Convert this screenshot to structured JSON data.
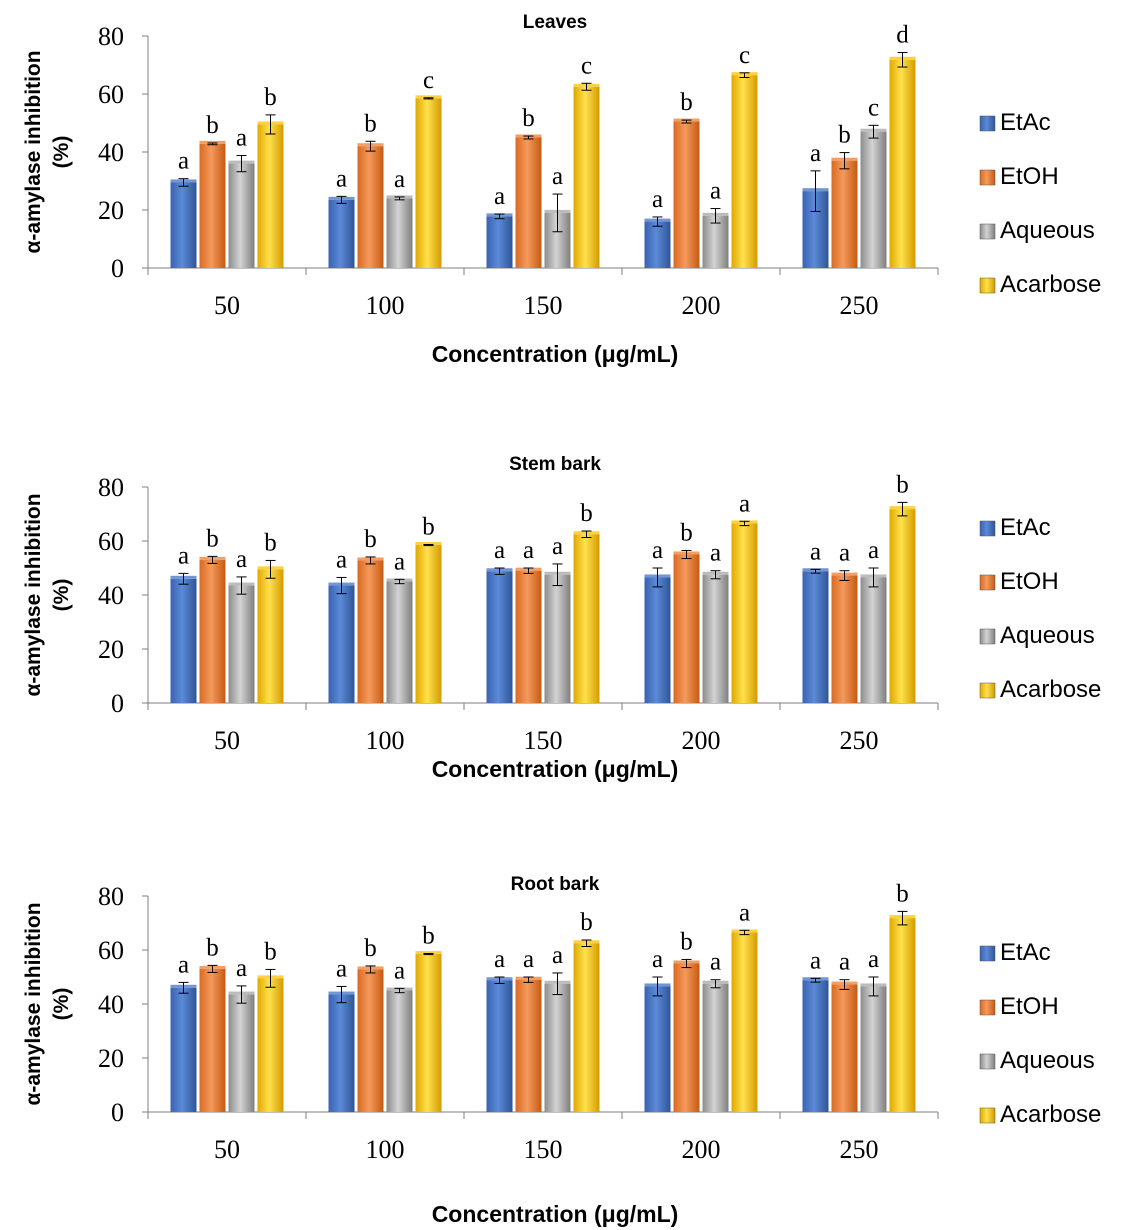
{
  "chart_data": [
    {
      "type": "bar",
      "title": "Leaves",
      "xlabel": "Concentration (μg/mL)",
      "ylabel": "α-amylase inhibition (%)",
      "ylim": [
        0,
        80
      ],
      "yticks": [
        0,
        20,
        40,
        60,
        80
      ],
      "categories": [
        "50",
        "100",
        "150",
        "200",
        "250"
      ],
      "legend_position": "right",
      "series": [
        {
          "name": "EtAc",
          "color": "#4472c4",
          "values": [
            29.5,
            23.5,
            17.8,
            16.0,
            26.5
          ],
          "errors": [
            1.3,
            1.2,
            0.8,
            1.6,
            7.0
          ],
          "letters": [
            "a",
            "a",
            "a",
            "a",
            "a"
          ]
        },
        {
          "name": "EtOH",
          "color": "#ed7d31",
          "values": [
            42.8,
            42.0,
            45.0,
            50.5,
            37.0
          ],
          "errors": [
            0.3,
            1.7,
            0.5,
            0.5,
            2.8
          ],
          "letters": [
            "b",
            "b",
            "b",
            "b",
            "b"
          ]
        },
        {
          "name": "Aqueous",
          "color": "#a5a5a5",
          "values": [
            36.0,
            24.0,
            19.0,
            18.0,
            47.0
          ],
          "errors": [
            2.8,
            0.5,
            6.5,
            2.5,
            2.2
          ],
          "letters": [
            "a",
            "a",
            "a",
            "a",
            "c"
          ]
        },
        {
          "name": "Acarbose",
          "color": "#ffc000",
          "values": [
            49.5,
            58.5,
            62.5,
            66.5,
            71.8
          ],
          "errors": [
            3.3,
            0.2,
            1.2,
            0.8,
            2.5
          ],
          "letters": [
            "b",
            "c",
            "c",
            "c",
            "d"
          ]
        }
      ]
    },
    {
      "type": "bar",
      "title": "Stem bark",
      "xlabel": "Concentration (μg/mL)",
      "ylabel": "α-amylase inhibition (%)",
      "ylim": [
        0,
        80
      ],
      "yticks": [
        0,
        20,
        40,
        60,
        80
      ],
      "categories": [
        "50",
        "100",
        "150",
        "200",
        "250"
      ],
      "legend_position": "right",
      "series": [
        {
          "name": "EtAc",
          "color": "#4472c4",
          "values": [
            46.0,
            43.5,
            48.8,
            46.5,
            48.8
          ],
          "errors": [
            2.0,
            3.0,
            1.2,
            3.5,
            0.7
          ],
          "letters": [
            "a",
            "a",
            "a",
            "a",
            "a"
          ]
        },
        {
          "name": "EtOH",
          "color": "#ed7d31",
          "values": [
            53.0,
            52.8,
            49.0,
            55.0,
            47.2
          ],
          "errors": [
            1.3,
            1.3,
            1.0,
            1.5,
            1.8
          ],
          "letters": [
            "b",
            "b",
            "a",
            "b",
            "a"
          ]
        },
        {
          "name": "Aqueous",
          "color": "#a5a5a5",
          "values": [
            43.5,
            45.0,
            47.5,
            47.5,
            46.5
          ],
          "errors": [
            3.2,
            0.8,
            4.0,
            1.5,
            3.5
          ],
          "letters": [
            "a",
            "a",
            "a",
            "a",
            "a"
          ]
        },
        {
          "name": "Acarbose",
          "color": "#ffc000",
          "values": [
            49.5,
            58.5,
            62.5,
            66.5,
            71.8
          ],
          "errors": [
            3.3,
            0.2,
            1.2,
            0.8,
            2.5
          ],
          "letters": [
            "b",
            "b",
            "b",
            "a",
            "b"
          ]
        }
      ]
    },
    {
      "type": "bar",
      "title": "Root bark",
      "xlabel": "Concentration (μg/mL)",
      "ylabel": "α-amylase inhibition (%)",
      "ylim": [
        0,
        80
      ],
      "yticks": [
        0,
        20,
        40,
        60,
        80
      ],
      "categories": [
        "50",
        "100",
        "150",
        "200",
        "250"
      ],
      "legend_position": "right",
      "series": [
        {
          "name": "EtAc",
          "color": "#4472c4",
          "values": [
            46.0,
            43.5,
            48.8,
            46.5,
            48.8
          ],
          "errors": [
            2.0,
            3.0,
            1.2,
            3.5,
            0.7
          ],
          "letters": [
            "a",
            "a",
            "a",
            "a",
            "a"
          ]
        },
        {
          "name": "EtOH",
          "color": "#ed7d31",
          "values": [
            53.0,
            52.8,
            49.0,
            55.0,
            47.2
          ],
          "errors": [
            1.3,
            1.3,
            1.0,
            1.5,
            1.8
          ],
          "letters": [
            "b",
            "b",
            "a",
            "b",
            "a"
          ]
        },
        {
          "name": "Aqueous",
          "color": "#a5a5a5",
          "values": [
            43.5,
            45.0,
            47.5,
            47.5,
            46.5
          ],
          "errors": [
            3.2,
            0.8,
            4.0,
            1.5,
            3.5
          ],
          "letters": [
            "a",
            "a",
            "a",
            "a",
            "a"
          ]
        },
        {
          "name": "Acarbose",
          "color": "#ffc000",
          "values": [
            49.5,
            58.5,
            62.5,
            66.5,
            71.8
          ],
          "errors": [
            3.3,
            0.2,
            1.2,
            0.8,
            2.5
          ],
          "letters": [
            "b",
            "b",
            "b",
            "a",
            "b"
          ]
        }
      ]
    }
  ]
}
